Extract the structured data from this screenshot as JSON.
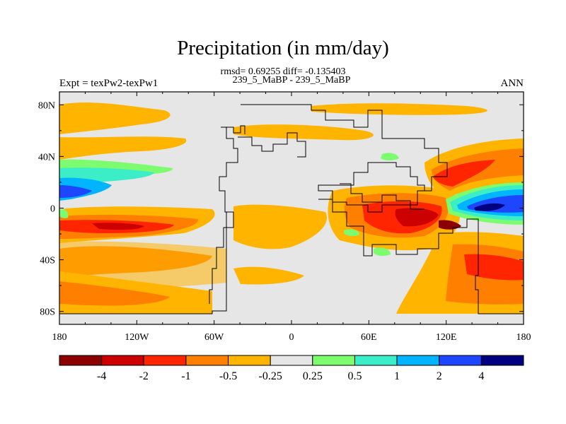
{
  "title": "Precipitation (in mm/day)",
  "stats_line": "rmsd= 0.69255 diff= -0.135403",
  "experiment_line": "239_5_MaBP - 239_5_MaBP",
  "left_label": "Expt = texPw2-texPw1",
  "right_label": "ANN",
  "chart_data": {
    "type": "heatmap",
    "title": "Precipitation (in mm/day)",
    "subtitle": "rmsd= 0.69255 diff= -0.135403",
    "x_ticks": [
      {
        "value": -180,
        "label": "180"
      },
      {
        "value": -120,
        "label": "120W"
      },
      {
        "value": -60,
        "label": "60W"
      },
      {
        "value": 0,
        "label": "0"
      },
      {
        "value": 60,
        "label": "60E"
      },
      {
        "value": 120,
        "label": "120E"
      },
      {
        "value": 180,
        "label": "180"
      }
    ],
    "y_ticks": [
      {
        "value": 80,
        "label": "80N"
      },
      {
        "value": 40,
        "label": "40N"
      },
      {
        "value": 0,
        "label": "0"
      },
      {
        "value": -40,
        "label": "40S"
      },
      {
        "value": -80,
        "label": "80S"
      }
    ],
    "xlim": [
      -180,
      180
    ],
    "ylim": [
      -90,
      90
    ],
    "colorbar": {
      "levels": [
        "-4",
        "-2",
        "-1",
        "-0.5",
        "-0.25",
        "0.25",
        "0.5",
        "1",
        "2",
        "4"
      ],
      "colors": [
        "#8b0000",
        "#cd0000",
        "#ff2500",
        "#ff7f00",
        "#ffb400",
        "#e6e6e6",
        "#7cfc6e",
        "#3ceec8",
        "#00b4ff",
        "#1e46ff",
        "#000080"
      ]
    },
    "regions": [
      {
        "name": "n-pacific-dry-band",
        "lon": [
          -180,
          -128
        ],
        "lat": [
          58,
          62
        ],
        "level": -0.25
      },
      {
        "name": "n-pacific-dry-band-b",
        "lon": [
          -180,
          -112
        ],
        "lat": [
          34,
          40
        ],
        "level": -0.25
      },
      {
        "name": "n-pacific-wet-band",
        "lon": [
          -180,
          -120
        ],
        "lat": [
          28,
          32
        ],
        "level": 1
      },
      {
        "name": "n-pacific-strong-wet",
        "lon": [
          -180,
          -150
        ],
        "lat": [
          10,
          14
        ],
        "level": 2
      },
      {
        "name": "s-pacific-dry-band",
        "lon": [
          -180,
          -110
        ],
        "lat": [
          -18,
          -12
        ],
        "level": -2
      },
      {
        "name": "s-pacific-moderate-dry",
        "lon": [
          -180,
          -100
        ],
        "lat": [
          -40,
          -30
        ],
        "level": -0.5
      },
      {
        "name": "s-ocean-dry",
        "lon": [
          -180,
          -120
        ],
        "lat": [
          -70,
          -60
        ],
        "level": -1
      },
      {
        "name": "indian-ocean-dry",
        "lon": [
          55,
          130
        ],
        "lat": [
          -20,
          5
        ],
        "level": -2
      },
      {
        "name": "maritime-core-dry",
        "lon": [
          100,
          120
        ],
        "lat": [
          -20,
          -10
        ],
        "level": -4
      },
      {
        "name": "w-pacific-wet",
        "lon": [
          140,
          180
        ],
        "lat": [
          -5,
          5
        ],
        "level": 2
      },
      {
        "name": "w-pacific-strong-wet",
        "lon": [
          150,
          170
        ],
        "lat": [
          -5,
          0
        ],
        "level": 4
      },
      {
        "name": "nw-pacific-dry",
        "lon": [
          115,
          160
        ],
        "lat": [
          20,
          40
        ],
        "level": -1
      },
      {
        "name": "sw-pacific-dry",
        "lon": [
          140,
          180
        ],
        "lat": [
          -60,
          -40
        ],
        "level": -1
      }
    ]
  }
}
